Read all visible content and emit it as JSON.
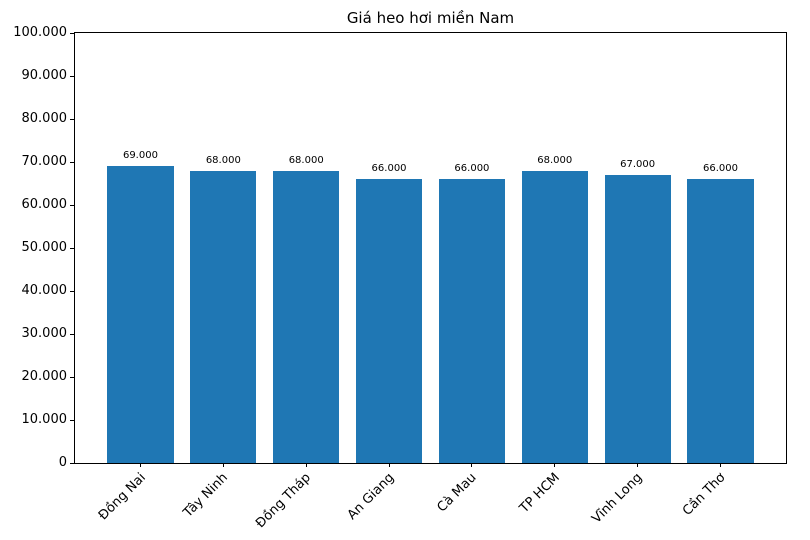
{
  "chart_data": {
    "type": "bar",
    "title": "Giá heo hơi miền Nam",
    "categories": [
      "Đồng Nai",
      "Tây Ninh",
      "Đồng Tháp",
      "An Giang",
      "Cà Mau",
      "TP HCM",
      "Vĩnh Long",
      "Cần Thơ"
    ],
    "values": [
      69000,
      68000,
      68000,
      66000,
      66000,
      68000,
      67000,
      66000
    ],
    "bar_value_labels": [
      "69.000",
      "68.000",
      "68.000",
      "66.000",
      "66.000",
      "68.000",
      "67.000",
      "66.000"
    ],
    "xlabel": "",
    "ylabel": "",
    "ylim": [
      0,
      100000
    ],
    "y_tick_values": [
      0,
      10000,
      20000,
      30000,
      40000,
      50000,
      60000,
      70000,
      80000,
      90000,
      100000
    ],
    "y_tick_labels": [
      "0",
      "10.000",
      "20.000",
      "30.000",
      "40.000",
      "50.000",
      "60.000",
      "70.000",
      "80.000",
      "90.000",
      "100.000"
    ],
    "bar_color": "#1f77b4",
    "text_color": "#000000",
    "background_color": "#ffffff",
    "grid": false,
    "legend": null,
    "x_tick_rotation_deg": 45,
    "bar_width_fraction": 0.8,
    "x_margin_fraction": 0.05
  }
}
